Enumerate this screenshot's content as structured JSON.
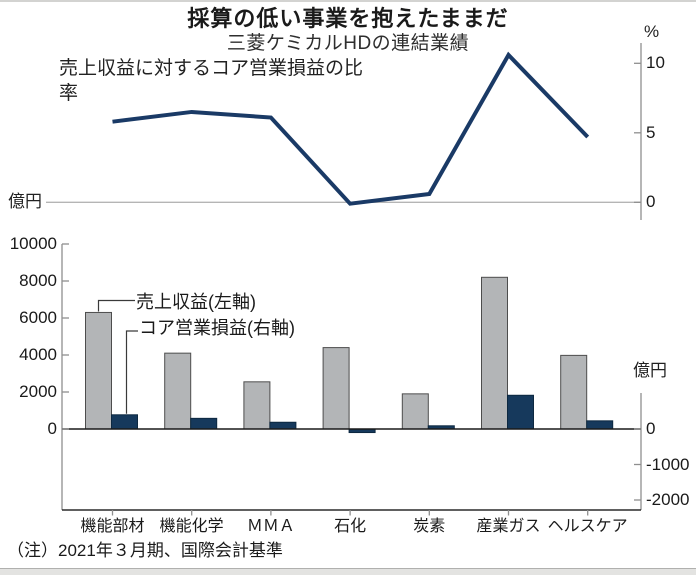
{
  "header": {
    "title": "採算の低い事業を抱えたままだ",
    "subtitle": "三菱ケミカルHDの連結業績"
  },
  "note": "（注）2021年３月期、国際会計基準",
  "colors": {
    "line_navy": "#1a3a66",
    "bar_navy": "#16395c",
    "bar_navy_border": "#0d2840",
    "bar_gray": "#b3b5b7",
    "bar_gray_border": "#4d4d4d",
    "axis_gray": "#8f8f8f",
    "grid_gray": "#b5b5b5",
    "baseline_dark": "#1a1a1a",
    "callout_dark": "#3a3a3a"
  },
  "chart_data": [
    {
      "type": "line",
      "title": "売上収益に対するコア営業損益の比率",
      "unit": "%",
      "categories": [
        "機能部材",
        "機能化学",
        "ＭＭＡ",
        "石化",
        "炭素",
        "産業ガス",
        "ヘルスケア"
      ],
      "values": [
        5.8,
        6.5,
        6.1,
        -0.1,
        0.6,
        10.6,
        4.7
      ],
      "yticks": [
        10,
        5,
        0
      ],
      "ylim": [
        -1.3,
        11.5
      ],
      "grid": "zero-line-only",
      "legend_position": "none"
    },
    {
      "type": "bar",
      "categories": [
        "機能部材",
        "機能化学",
        "ＭＭＡ",
        "石化",
        "炭素",
        "産業ガス",
        "ヘルスケア"
      ],
      "series": [
        {
          "name": "売上収益(左軸)",
          "axis": "left",
          "values": [
            6300,
            4100,
            2550,
            4400,
            1900,
            8200,
            3980
          ]
        },
        {
          "name": "コア営業損益(右軸)",
          "axis": "right",
          "values": [
            400,
            300,
            190,
            -100,
            90,
            950,
            230
          ]
        }
      ],
      "left_axis": {
        "unit": "億円",
        "ticks": [
          10000,
          8000,
          6000,
          4000,
          2000,
          0
        ],
        "range": [
          0,
          10000
        ]
      },
      "right_axis": {
        "unit": "億円",
        "ticks": [
          0,
          -1000,
          -2000
        ],
        "range": [
          -2300,
          1150
        ]
      },
      "legend_position": "callout-top-left"
    }
  ]
}
